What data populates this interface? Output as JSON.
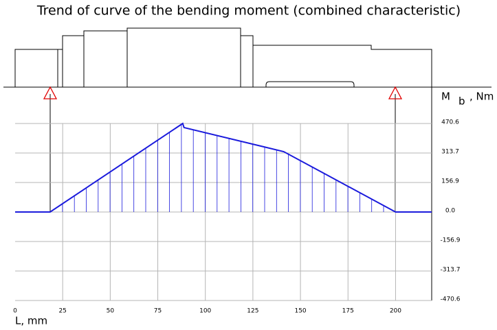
{
  "chart_data": {
    "type": "line",
    "title": "Trend of curve of the bending moment (combined characteristic)",
    "x_label": "L, mm",
    "y_label": "M",
    "y_label_subscript": "b",
    "y_label_unit": ", Nm",
    "x": [
      0,
      18.4,
      88.1,
      88.8,
      141.2,
      200,
      219
    ],
    "series": [
      {
        "color": "#1a1adc",
        "values": [
          0,
          0,
          470.6,
          449,
          321,
          0,
          0
        ]
      }
    ],
    "xlim": [
      0,
      219
    ],
    "xticks": [
      0,
      25,
      50,
      75,
      100,
      125,
      150,
      175,
      200
    ],
    "ylim": [
      -470.6,
      470.6
    ],
    "yticks": [
      {
        "value": 470.6,
        "label": "470.6"
      },
      {
        "value": 313.7,
        "label": "313.7"
      },
      {
        "value": 156.9,
        "label": "156.9"
      },
      {
        "value": 0,
        "label": "0.0"
      },
      {
        "value": -156.9,
        "label": "-156.9"
      },
      {
        "value": -313.7,
        "label": "-313.7"
      },
      {
        "value": -470.6,
        "label": "-470.6"
      }
    ],
    "grid": true
  }
}
